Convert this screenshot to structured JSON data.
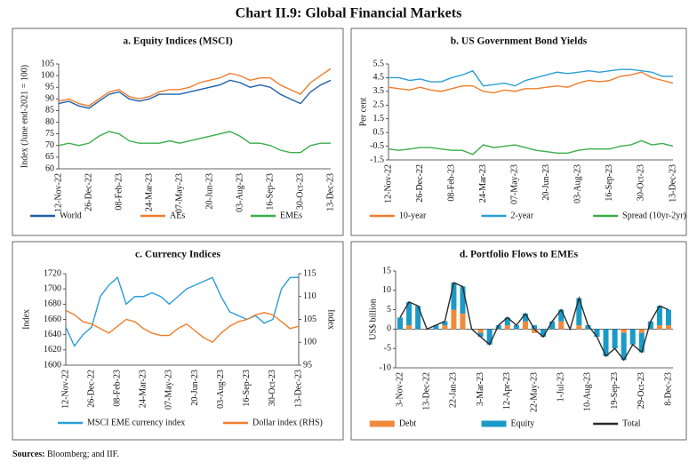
{
  "title": "Chart II.9: Global Financial Markets",
  "chart_data": [
    {
      "type": "line",
      "title": "a. Equity Indices (MSCI)",
      "y_label": "Index (June end-2021 = 100)",
      "categories": [
        "12-Nov-22",
        null,
        null,
        "26-Dec-22",
        null,
        null,
        "08-Feb-23",
        null,
        null,
        "24-Mar-23",
        null,
        null,
        "07-May-23",
        null,
        null,
        "20-Jun-23",
        null,
        null,
        "03-Aug-23",
        null,
        null,
        "16-Sep-23",
        null,
        null,
        "30-Oct-23",
        null,
        null,
        "13-Dec-23"
      ],
      "ylim": [
        60,
        105
      ],
      "yticks": [
        60,
        65,
        70,
        75,
        80,
        85,
        90,
        95,
        100,
        105
      ],
      "grid": false,
      "series": [
        {
          "name": "World",
          "color": "#1f5ea8",
          "values": [
            88,
            89,
            87,
            86,
            89,
            92,
            93,
            90,
            89,
            90,
            92,
            92,
            92,
            93,
            94,
            95,
            96,
            98,
            97,
            95,
            96,
            95,
            92,
            90,
            88,
            93,
            96,
            98
          ]
        },
        {
          "name": "AEs",
          "color": "#f07d2c",
          "values": [
            89,
            90,
            88,
            87,
            90,
            93,
            94,
            91,
            90,
            91,
            93,
            94,
            94,
            95,
            97,
            98,
            99,
            101,
            100,
            98,
            99,
            99,
            96,
            94,
            92,
            97,
            100,
            103
          ]
        },
        {
          "name": "EMEs",
          "color": "#3aae49",
          "values": [
            70,
            71,
            70,
            71,
            74,
            76,
            75,
            72,
            71,
            71,
            71,
            72,
            71,
            72,
            73,
            74,
            75,
            76,
            74,
            71,
            71,
            70,
            68,
            67,
            67,
            70,
            71,
            71
          ]
        }
      ]
    },
    {
      "type": "line",
      "title": "b. US  Government Bond Yields",
      "y_label": "Per cent",
      "categories": [
        "12-Nov-22",
        null,
        null,
        "26-Dec-22",
        null,
        null,
        "08-Feb-23",
        null,
        null,
        "24-Mar-23",
        null,
        null,
        "07-May-23",
        null,
        null,
        "20-Jun-23",
        null,
        null,
        "03-Aug-23",
        null,
        null,
        "16-Sep-23",
        null,
        null,
        "30-Oct-23",
        null,
        null,
        "13-Dec-23"
      ],
      "ylim": [
        -1.5,
        5.5
      ],
      "yticks": [
        -1.5,
        -0.5,
        0.5,
        1.5,
        2.5,
        3.5,
        4.5,
        5.5
      ],
      "grid": false,
      "series": [
        {
          "name": "10-year",
          "color": "#f07d2c",
          "values": [
            3.8,
            3.7,
            3.6,
            3.8,
            3.6,
            3.5,
            3.7,
            3.9,
            3.9,
            3.5,
            3.4,
            3.6,
            3.5,
            3.7,
            3.7,
            3.8,
            3.9,
            3.8,
            4.1,
            4.3,
            4.2,
            4.3,
            4.6,
            4.7,
            4.9,
            4.5,
            4.3,
            4.1
          ]
        },
        {
          "name": "2-year",
          "color": "#2b9fd6",
          "values": [
            4.5,
            4.5,
            4.3,
            4.4,
            4.2,
            4.2,
            4.5,
            4.7,
            5.0,
            3.9,
            4.0,
            4.1,
            3.9,
            4.3,
            4.5,
            4.7,
            4.9,
            4.8,
            4.9,
            5.0,
            4.9,
            5.0,
            5.1,
            5.1,
            5.0,
            4.9,
            4.6,
            4.6
          ]
        },
        {
          "name": "Spread (10yr-2yr)",
          "color": "#3aae49",
          "values": [
            -0.7,
            -0.8,
            -0.7,
            -0.6,
            -0.6,
            -0.7,
            -0.8,
            -0.8,
            -1.1,
            -0.4,
            -0.6,
            -0.5,
            -0.4,
            -0.6,
            -0.8,
            -0.9,
            -1.0,
            -1.0,
            -0.8,
            -0.7,
            -0.7,
            -0.7,
            -0.5,
            -0.4,
            -0.1,
            -0.4,
            -0.3,
            -0.5
          ]
        }
      ]
    },
    {
      "type": "line",
      "title": "c. Currency Indices",
      "y_label": "Index",
      "y2_label": "Index",
      "categories": [
        "12-Nov-22",
        null,
        null,
        "26-Dec-22",
        null,
        null,
        "08-Feb-23",
        null,
        null,
        "24-Mar-23",
        null,
        null,
        "07-May-23",
        null,
        null,
        "20-Jun-23",
        null,
        null,
        "03-Aug-23",
        null,
        null,
        "16-Sep-23",
        null,
        null,
        "30-Oct-23",
        null,
        null,
        "13-Dec-23"
      ],
      "ylim": [
        1600,
        1720
      ],
      "yticks": [
        1600,
        1620,
        1640,
        1660,
        1680,
        1700,
        1720
      ],
      "y2lim": [
        95,
        115
      ],
      "y2ticks": [
        95,
        100,
        105,
        110,
        115
      ],
      "grid": false,
      "series": [
        {
          "name": "MSCI EME currency index",
          "color": "#2b9fd6",
          "values": [
            1650,
            1625,
            1640,
            1650,
            1690,
            1705,
            1715,
            1680,
            1690,
            1690,
            1695,
            1690,
            1680,
            1690,
            1700,
            1705,
            1710,
            1715,
            1690,
            1670,
            1665,
            1660,
            1665,
            1655,
            1660,
            1700,
            1715,
            1715
          ]
        },
        {
          "name": "Dollar index (RHS)",
          "color": "#f07d2c",
          "axis": "y2",
          "values": [
            107,
            106,
            104.5,
            104,
            103,
            102,
            103.5,
            105,
            104.5,
            103,
            102,
            101.5,
            101.5,
            103,
            104,
            102.5,
            101,
            100,
            102,
            103.5,
            104.5,
            105,
            106,
            106.5,
            106,
            104.5,
            103,
            103.5
          ]
        }
      ]
    },
    {
      "type": "bar",
      "title": "d. Portfolio Flows to EMEs",
      "y_label": "US$ billion",
      "categories": [
        "3-Nov-22",
        null,
        null,
        "13-Dec-22",
        null,
        null,
        "22-Jan-23",
        null,
        null,
        "3-Mar-23",
        null,
        null,
        "12-Apr-23",
        null,
        null,
        "22-May-23",
        null,
        null,
        "1-Jul-23",
        null,
        null,
        "10-Aug-23",
        null,
        null,
        "19-Sep-23",
        null,
        null,
        "29-Oct-23",
        null,
        null,
        "8-Dec-23"
      ],
      "ylim": [
        -10,
        15
      ],
      "yticks": [
        -10,
        -5,
        0,
        5,
        10,
        15
      ],
      "grid": false,
      "series": [
        {
          "name": "Debt",
          "color": "#f08a3c",
          "values": [
            0,
            1,
            0,
            0,
            0,
            1,
            5,
            4,
            0,
            -1,
            0,
            0,
            1,
            0,
            2,
            -1,
            0,
            0,
            2,
            0,
            1,
            0,
            0,
            0,
            0,
            -1,
            0,
            -1,
            0,
            1,
            1
          ]
        },
        {
          "name": "Equity",
          "color": "#1b9ac8",
          "values": [
            3,
            6,
            6,
            0,
            1,
            1,
            7,
            7,
            0,
            -1,
            -4,
            1,
            2,
            1,
            2,
            1,
            -2,
            2,
            3,
            0,
            7,
            1,
            -2,
            -7,
            -5,
            -7,
            -4,
            -5,
            2,
            5,
            4
          ]
        },
        {
          "name": "Total",
          "color": "#2b2b2b",
          "type": "line",
          "values": [
            3,
            7,
            6,
            0,
            1,
            2,
            12,
            11,
            0,
            -2,
            -4,
            1,
            3,
            1,
            4,
            0,
            -2,
            2,
            5,
            0,
            8,
            1,
            -2,
            -7,
            -5,
            -8,
            -4,
            -6,
            2,
            6,
            5
          ]
        }
      ]
    }
  ],
  "sources": {
    "label": "Sources:",
    "text": "Bloomberg; and IIF."
  }
}
